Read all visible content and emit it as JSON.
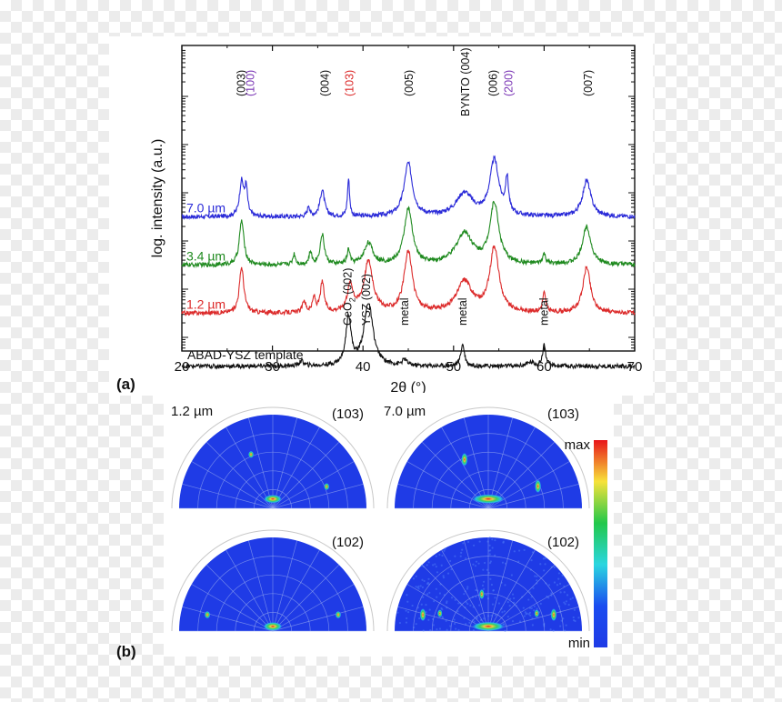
{
  "chart_data": [
    {
      "type": "line",
      "panel_label": "(a)",
      "xlabel": "2θ (°)",
      "ylabel": "log. intensity (a.u.)",
      "xlim": [
        20,
        70
      ],
      "xticks": [
        20,
        30,
        40,
        50,
        60,
        70
      ],
      "xtick_labels": [
        "20",
        "30",
        "40",
        "50",
        "60",
        "70"
      ],
      "series": [
        {
          "name": "7.0 µm",
          "color": "#2a2ad8",
          "baseline": 0.5,
          "peaks": [
            {
              "x": 26.6,
              "h": 0.72,
              "w": 0.28
            },
            {
              "x": 27.1,
              "h": 0.55,
              "w": 0.18
            },
            {
              "x": 34.0,
              "h": 0.22,
              "w": 0.15
            },
            {
              "x": 35.5,
              "h": 0.55,
              "w": 0.3
            },
            {
              "x": 38.4,
              "h": 0.78,
              "w": 0.14
            },
            {
              "x": 45.0,
              "h": 1.1,
              "w": 0.55
            },
            {
              "x": 51.2,
              "h": 0.48,
              "w": 1.1
            },
            {
              "x": 54.5,
              "h": 1.15,
              "w": 0.6
            },
            {
              "x": 55.9,
              "h": 0.7,
              "w": 0.2
            },
            {
              "x": 64.7,
              "h": 0.75,
              "w": 0.55
            }
          ]
        },
        {
          "name": "3.4 µm",
          "color": "#1f8a1f",
          "baseline": -0.5,
          "peaks": [
            {
              "x": 26.6,
              "h": 0.92,
              "w": 0.3
            },
            {
              "x": 32.4,
              "h": 0.22,
              "w": 0.18
            },
            {
              "x": 34.2,
              "h": 0.25,
              "w": 0.18
            },
            {
              "x": 35.5,
              "h": 0.62,
              "w": 0.28
            },
            {
              "x": 38.4,
              "h": 0.3,
              "w": 0.18
            },
            {
              "x": 40.6,
              "h": 0.45,
              "w": 0.55
            },
            {
              "x": 45.0,
              "h": 1.15,
              "w": 0.55
            },
            {
              "x": 51.2,
              "h": 0.65,
              "w": 1.1
            },
            {
              "x": 54.5,
              "h": 1.25,
              "w": 0.6
            },
            {
              "x": 60.0,
              "h": 0.2,
              "w": 0.2
            },
            {
              "x": 64.7,
              "h": 0.8,
              "w": 0.55
            }
          ]
        },
        {
          "name": "1.2 µm",
          "color": "#dc2a2a",
          "baseline": -1.5,
          "peaks": [
            {
              "x": 26.6,
              "h": 0.95,
              "w": 0.3
            },
            {
              "x": 33.5,
              "h": 0.25,
              "w": 0.2
            },
            {
              "x": 34.6,
              "h": 0.3,
              "w": 0.2
            },
            {
              "x": 35.5,
              "h": 0.62,
              "w": 0.25
            },
            {
              "x": 38.6,
              "h": 0.55,
              "w": 0.4
            },
            {
              "x": 40.6,
              "h": 1.05,
              "w": 0.6
            },
            {
              "x": 45.0,
              "h": 1.25,
              "w": 0.55
            },
            {
              "x": 51.2,
              "h": 0.65,
              "w": 1.0
            },
            {
              "x": 54.5,
              "h": 1.35,
              "w": 0.6
            },
            {
              "x": 60.0,
              "h": 0.4,
              "w": 0.2
            },
            {
              "x": 64.7,
              "h": 0.95,
              "w": 0.5
            }
          ]
        },
        {
          "name": "ABAD-YSZ template",
          "color": "#111111",
          "baseline": -2.6,
          "peaks": [
            {
              "x": 33.2,
              "h": 0.1,
              "w": 0.3
            },
            {
              "x": 38.4,
              "h": 1.0,
              "w": 0.35
            },
            {
              "x": 40.6,
              "h": 1.3,
              "w": 0.6
            },
            {
              "x": 44.6,
              "h": 0.12,
              "w": 0.3
            },
            {
              "x": 51.0,
              "h": 0.45,
              "w": 0.25
            },
            {
              "x": 58.5,
              "h": 0.08,
              "w": 0.5
            },
            {
              "x": 60.0,
              "h": 0.45,
              "w": 0.2
            }
          ]
        }
      ],
      "peak_labels": [
        {
          "text": "(003)",
          "x": 26.5,
          "color": "#111111"
        },
        {
          "text": "(100)",
          "x": 27.5,
          "color": "#7a35b5"
        },
        {
          "text": "(004)",
          "x": 35.7,
          "color": "#111111"
        },
        {
          "text": "(103)",
          "x": 38.4,
          "color": "#dc2a2a"
        },
        {
          "text": "(005)",
          "x": 45.0,
          "color": "#111111"
        },
        {
          "text": "BYNTO (004)",
          "x": 51.2,
          "color": "#111111"
        },
        {
          "text": "(006)",
          "x": 54.3,
          "color": "#111111"
        },
        {
          "text": "(200)",
          "x": 56.0,
          "color": "#7a35b5"
        },
        {
          "text": "(007)",
          "x": 64.8,
          "color": "#111111"
        }
      ],
      "template_labels": {
        "ceo2_main": "CeO",
        "ceo2_sub": "2",
        "ceo2_hkl": " (002)",
        "ysz": "YSZ (002)",
        "metal": "metal"
      }
    },
    {
      "type": "heatmap",
      "panel_label": "(b)",
      "title_thickness_left": "1.2 µm",
      "title_thickness_right": "7.0 µm",
      "plots": [
        {
          "name": "1.2um-103",
          "reflection": "(103)",
          "spots": [
            {
              "psi": 0.1,
              "phi": 90,
              "strength": 0.85,
              "elong": 1.0
            },
            {
              "psi": 0.62,
              "phi": 112,
              "strength": 0.45,
              "elong": 0.8
            },
            {
              "psi": 0.62,
              "phi": 22,
              "strength": 0.45,
              "elong": 0.8
            }
          ]
        },
        {
          "name": "7.0um-103",
          "reflection": "(103)",
          "spots": [
            {
              "psi": 0.1,
              "phi": 90,
              "strength": 1.0,
              "elong": 1.6
            },
            {
              "psi": 0.58,
              "phi": 116,
              "strength": 0.6,
              "elong": 1.3
            },
            {
              "psi": 0.58,
              "phi": 24,
              "strength": 0.6,
              "elong": 1.3
            }
          ]
        },
        {
          "name": "1.2um-102",
          "reflection": "(102)",
          "spots": [
            {
              "psi": 0.05,
              "phi": 90,
              "strength": 0.9,
              "elong": 1.0
            },
            {
              "psi": 0.72,
              "phi": 166,
              "strength": 0.5,
              "elong": 0.8
            },
            {
              "psi": 0.72,
              "phi": 14,
              "strength": 0.5,
              "elong": 0.8
            }
          ]
        },
        {
          "name": "7.0um-102",
          "reflection": "(102)",
          "spots": [
            {
              "psi": 0.05,
              "phi": 90,
              "strength": 1.0,
              "elong": 1.6
            },
            {
              "psi": 0.4,
              "phi": 100,
              "strength": 0.4,
              "elong": 1.2
            },
            {
              "psi": 0.72,
              "phi": 166,
              "strength": 0.55,
              "elong": 1.3
            },
            {
              "psi": 0.72,
              "phi": 14,
              "strength": 0.55,
              "elong": 1.3
            },
            {
              "psi": 0.55,
              "phi": 160,
              "strength": 0.35,
              "elong": 1.0
            },
            {
              "psi": 0.55,
              "phi": 20,
              "strength": 0.35,
              "elong": 1.0
            }
          ]
        }
      ],
      "colorbar": {
        "max_label": "max",
        "min_label": "min",
        "stops": [
          "#e8141a",
          "#f7e23a",
          "#22c84a",
          "#2ad6e0",
          "#1a4cf0",
          "#1f3be6"
        ]
      },
      "background_color": "#1f3be6"
    }
  ]
}
